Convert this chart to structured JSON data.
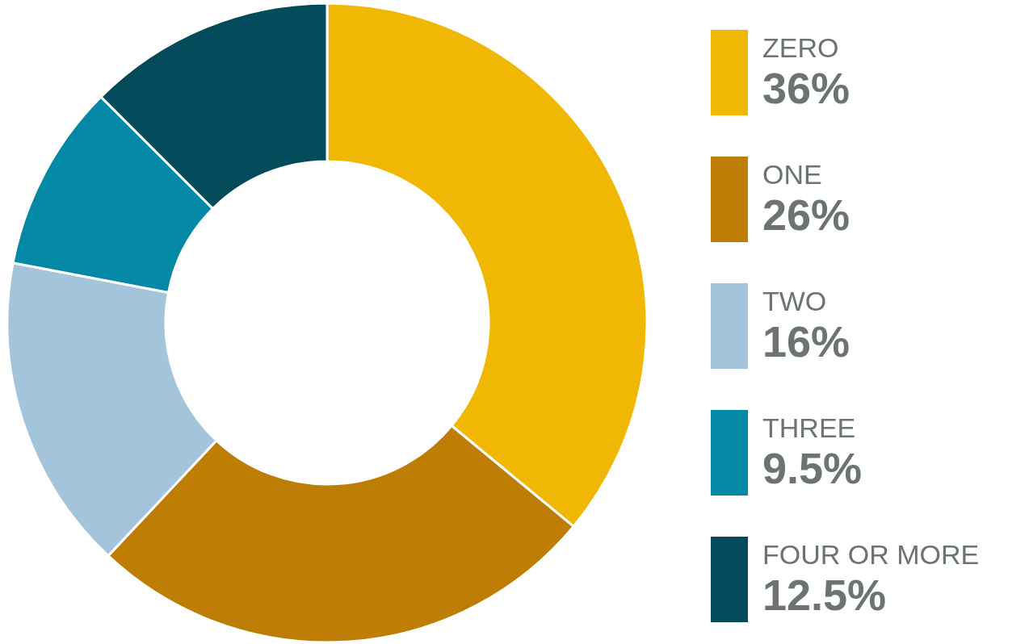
{
  "chart_data": {
    "type": "donut",
    "categories": [
      "ZERO",
      "ONE",
      "TWO",
      "THREE",
      "FOUR OR MORE"
    ],
    "values": [
      36,
      26,
      16,
      9.5,
      12.5
    ],
    "value_labels": [
      "36%",
      "26%",
      "16%",
      "9.5%",
      "12.5%"
    ],
    "colors": [
      "#f0b705",
      "#be7e05",
      "#a3c4da",
      "#0388a6",
      "#034a5b"
    ],
    "legend": "right"
  }
}
